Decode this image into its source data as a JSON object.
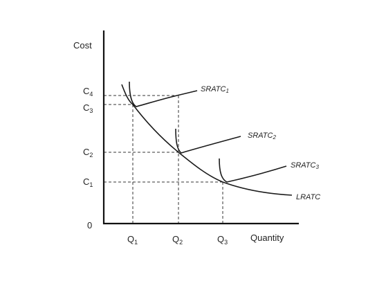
{
  "chart_data": {
    "type": "line",
    "ylabel": "Cost",
    "xlabel": "Quantity",
    "origin_label": "0",
    "y_ticks": [
      {
        "label": "C",
        "sub": "4"
      },
      {
        "label": "C",
        "sub": "3"
      },
      {
        "label": "C",
        "sub": "2"
      },
      {
        "label": "C",
        "sub": "1"
      }
    ],
    "x_ticks": [
      {
        "label": "Q",
        "sub": "1"
      },
      {
        "label": "Q",
        "sub": "2"
      },
      {
        "label": "Q",
        "sub": "3"
      }
    ],
    "series": [
      {
        "name": "LRATC",
        "label_main": "LRATC",
        "label_sub": ""
      },
      {
        "name": "SRATC1",
        "label_main": "SRATC",
        "label_sub": "1"
      },
      {
        "name": "SRATC2",
        "label_main": "SRATC",
        "label_sub": "2"
      },
      {
        "name": "SRATC3",
        "label_main": "SRATC",
        "label_sub": "3"
      }
    ],
    "grid": false
  }
}
